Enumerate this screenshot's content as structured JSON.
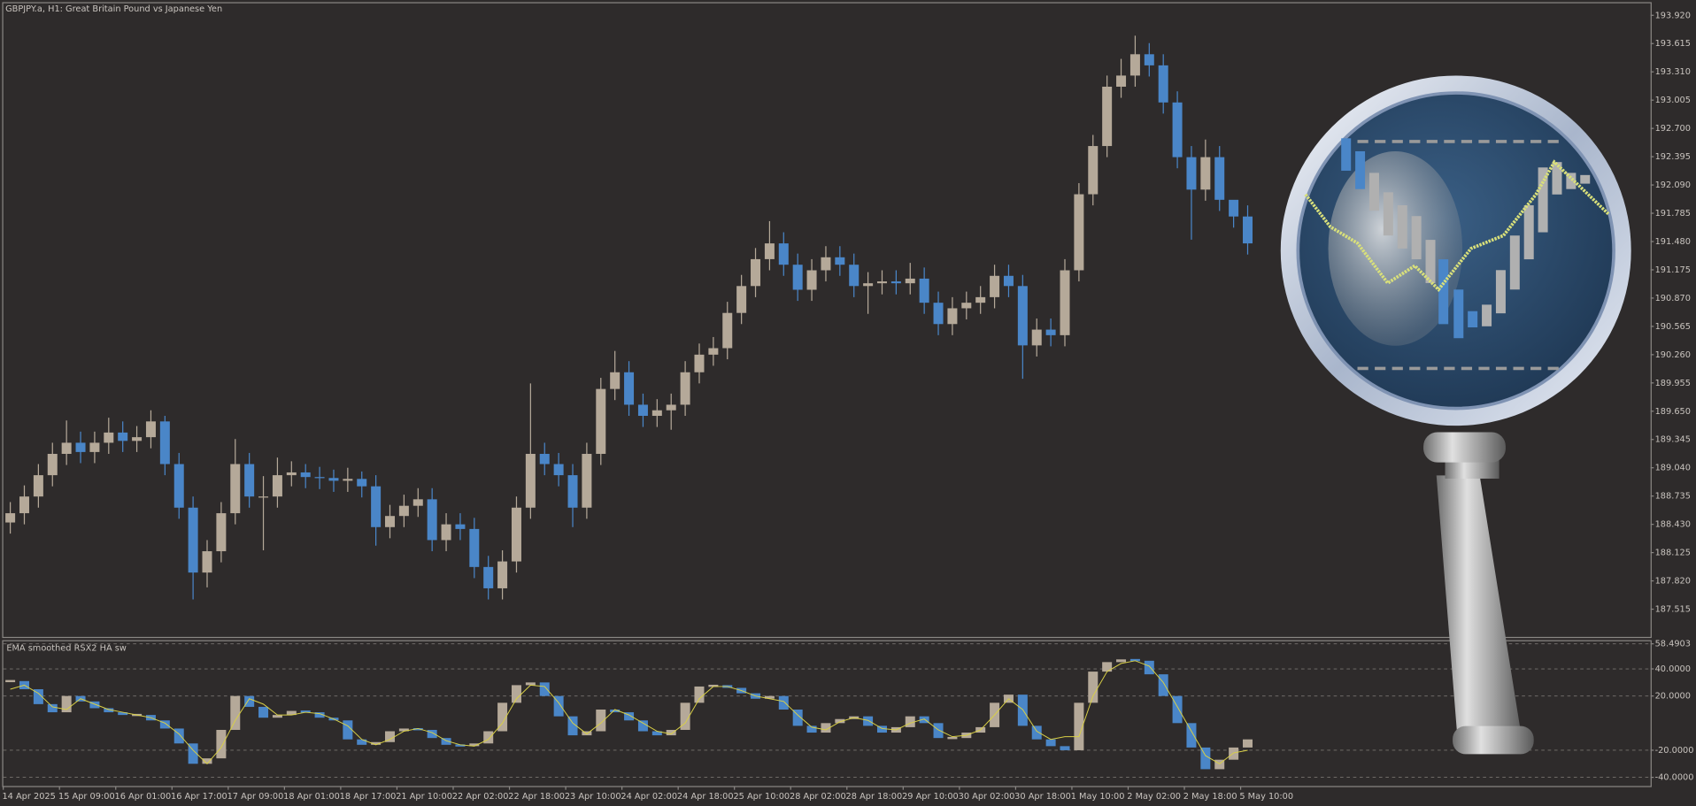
{
  "chart_data": [
    {
      "type": "candlestick",
      "title": "GBPJPY.a, H1:  Great Britain Pound vs Japanese Yen",
      "up_color": "#b5a999",
      "down_color": "#4a86c8",
      "ylim": [
        187.21,
        194.05
      ],
      "yticks": [
        {
          "value": 193.92,
          "label": "193.920"
        },
        193.615,
        {
          "value": 193.31,
          "label": "193.310"
        },
        193.005,
        {
          "value": 192.7,
          "label": "192.700"
        },
        192.395,
        {
          "value": 192.09,
          "label": "192.090"
        },
        191.785,
        {
          "value": 191.48,
          "label": "191.480"
        },
        191.175,
        {
          "value": 190.87,
          "label": "190.870"
        },
        190.565,
        {
          "value": 190.26,
          "label": "190.260"
        },
        189.955,
        {
          "value": 189.65,
          "label": "189.650"
        },
        189.345,
        {
          "value": 189.04,
          "label": "189.040"
        },
        188.735,
        {
          "value": 188.43,
          "label": "188.430"
        },
        188.125,
        {
          "value": 187.82,
          "label": "187.820"
        },
        187.515
      ],
      "open": [
        188.45,
        188.55,
        188.73,
        188.96,
        189.19,
        189.31,
        189.21,
        189.31,
        189.42,
        189.33,
        189.37,
        189.54,
        189.08,
        188.61,
        187.91,
        188.14,
        188.55,
        189.08,
        188.73,
        188.73,
        188.96,
        188.99,
        188.94,
        188.93,
        188.9,
        188.92,
        188.84,
        188.4,
        188.52,
        188.63,
        188.7,
        188.26,
        188.43,
        188.38,
        187.97,
        187.74,
        188.03,
        188.61,
        189.19,
        189.08,
        188.96,
        188.61,
        189.19,
        189.89,
        190.07,
        189.72,
        189.6,
        189.66,
        189.72,
        190.07,
        190.26,
        190.33,
        190.71,
        191.0,
        191.29,
        191.46,
        191.23,
        190.96,
        191.17,
        191.31,
        191.23,
        191.0,
        191.03,
        191.05,
        191.03,
        191.08,
        190.82,
        190.59,
        190.76,
        190.82,
        190.88,
        191.11,
        191.0,
        190.36,
        190.53,
        190.47,
        191.17,
        191.99,
        192.51,
        193.15,
        193.27,
        193.5,
        193.38,
        192.98,
        192.39,
        192.04,
        192.39,
        191.93,
        191.75
      ],
      "high": [
        188.67,
        188.85,
        189.08,
        189.31,
        189.55,
        189.43,
        189.43,
        189.58,
        189.54,
        189.49,
        189.66,
        189.6,
        189.2,
        188.73,
        188.26,
        188.67,
        189.35,
        189.2,
        188.95,
        189.15,
        189.11,
        189.08,
        189.05,
        189.02,
        189.04,
        189.0,
        188.96,
        188.64,
        188.75,
        188.82,
        188.82,
        188.55,
        188.55,
        188.5,
        188.09,
        188.15,
        188.73,
        189.95,
        189.31,
        189.2,
        189.08,
        189.31,
        190.01,
        190.3,
        190.19,
        189.84,
        189.78,
        189.84,
        190.19,
        190.38,
        190.45,
        190.83,
        191.12,
        191.41,
        191.7,
        191.58,
        191.35,
        191.29,
        191.43,
        191.43,
        191.35,
        191.15,
        191.17,
        191.17,
        191.25,
        191.2,
        190.94,
        190.88,
        190.94,
        191.0,
        191.23,
        191.23,
        191.12,
        190.65,
        190.65,
        191.29,
        192.11,
        192.63,
        193.27,
        193.45,
        193.7,
        193.62,
        193.5,
        193.1,
        192.51,
        192.58,
        192.51,
        191.87,
        191.87
      ],
      "low": [
        188.33,
        188.43,
        188.61,
        188.84,
        189.07,
        189.09,
        189.09,
        189.19,
        189.21,
        189.21,
        189.25,
        188.96,
        188.49,
        187.62,
        187.75,
        188.02,
        188.43,
        188.61,
        188.15,
        188.61,
        188.84,
        188.82,
        188.81,
        188.78,
        188.78,
        188.72,
        188.2,
        188.28,
        188.4,
        188.51,
        188.14,
        188.14,
        188.26,
        187.85,
        187.62,
        187.62,
        187.91,
        188.49,
        188.96,
        188.84,
        188.4,
        188.49,
        189.07,
        189.77,
        189.6,
        189.48,
        189.48,
        189.45,
        189.6,
        189.95,
        190.14,
        190.21,
        190.59,
        190.88,
        191.17,
        191.11,
        190.84,
        190.84,
        191.05,
        191.11,
        190.88,
        190.7,
        190.91,
        190.91,
        190.91,
        190.7,
        190.47,
        190.47,
        190.64,
        190.7,
        190.76,
        190.88,
        190.0,
        190.24,
        190.35,
        190.35,
        191.05,
        191.87,
        192.39,
        193.03,
        193.15,
        193.26,
        192.86,
        192.27,
        191.5,
        191.92,
        191.81,
        191.63,
        191.34
      ],
      "close": [
        188.55,
        188.73,
        188.96,
        189.19,
        189.31,
        189.21,
        189.31,
        189.42,
        189.33,
        189.37,
        189.54,
        189.08,
        188.61,
        187.91,
        188.14,
        188.55,
        189.08,
        188.73,
        188.73,
        188.96,
        188.99,
        188.94,
        188.93,
        188.9,
        188.92,
        188.84,
        188.4,
        188.52,
        188.63,
        188.7,
        188.26,
        188.43,
        188.38,
        187.97,
        187.74,
        188.03,
        188.61,
        189.19,
        189.08,
        188.96,
        188.61,
        189.19,
        189.89,
        190.07,
        189.72,
        189.6,
        189.66,
        189.72,
        190.07,
        190.26,
        190.33,
        190.71,
        191.0,
        191.29,
        191.46,
        191.23,
        190.96,
        191.17,
        191.31,
        191.23,
        191.0,
        191.03,
        191.05,
        191.03,
        191.08,
        190.82,
        190.59,
        190.76,
        190.82,
        190.88,
        191.11,
        191.0,
        190.36,
        190.53,
        190.47,
        191.17,
        191.99,
        192.51,
        193.15,
        193.27,
        193.5,
        193.38,
        192.98,
        192.39,
        192.04,
        192.39,
        191.93,
        191.75,
        191.46
      ]
    },
    {
      "type": "oscillator",
      "title": "EMA smoothed RSX2 HA sw",
      "ylim": [
        -46,
        60
      ],
      "yticks": [
        58.4903,
        {
          "value": 40,
          "label": "40.0000"
        },
        {
          "value": 20,
          "label": "20.0000"
        },
        {
          "value": -20,
          "label": "-20.0000"
        },
        {
          "value": -40,
          "label": "-40.0000"
        }
      ],
      "grid": true,
      "categories": [
        "14 Apr 2025",
        null,
        null,
        null,
        "15 Apr 09:00",
        null,
        null,
        null,
        "16 Apr 01:00",
        null,
        null,
        null,
        "16 Apr 17:00",
        null,
        null,
        null,
        "17 Apr 09:00",
        null,
        null,
        null,
        "18 Apr 01:00",
        null,
        null,
        null,
        "18 Apr 17:00",
        null,
        null,
        null,
        "21 Apr 10:00",
        null,
        null,
        null,
        "22 Apr 02:00",
        null,
        null,
        null,
        "22 Apr 18:00",
        null,
        null,
        null,
        "23 Apr 10:00",
        null,
        null,
        null,
        "24 Apr 02:00",
        null,
        null,
        null,
        "24 Apr 18:00",
        null,
        null,
        null,
        "25 Apr 10:00",
        null,
        null,
        null,
        "28 Apr 02:00",
        null,
        null,
        null,
        "28 Apr 18:00",
        null,
        null,
        null,
        "29 Apr 10:00",
        null,
        null,
        null,
        "30 Apr 02:00",
        null,
        null,
        null,
        "30 Apr 18:00",
        null,
        null,
        null,
        "1 May 10:00",
        null,
        null,
        null,
        "2 May 02:00",
        null,
        null,
        null,
        "2 May 18:00",
        null,
        null,
        null,
        "5 May 10:00"
      ],
      "series": [
        {
          "up_color": "#b5a999",
          "down_color": "#4a86c8",
          "values": [
            31,
            25,
            14,
            8,
            20,
            16,
            11,
            8,
            6,
            6,
            2,
            -4,
            -15,
            -30,
            -26,
            -5,
            20,
            12,
            4,
            6,
            9,
            8,
            4,
            2,
            -12,
            -16,
            -14,
            -6,
            -4,
            -5,
            -11,
            -16,
            -17,
            -15,
            -6,
            15,
            28,
            30,
            20,
            5,
            -9,
            -6,
            10,
            8,
            2,
            -6,
            -9,
            -5,
            15,
            27,
            28,
            26,
            22,
            18,
            20,
            10,
            -2,
            -7,
            0,
            3,
            5,
            -2,
            -7,
            -3,
            5,
            0,
            -11,
            -11,
            -7,
            -3,
            15,
            21,
            -2,
            -12,
            -17,
            -20,
            15,
            38,
            45,
            47,
            46,
            36,
            20,
            0,
            -18,
            -34,
            -27,
            -18,
            -12
          ]
        },
        {
          "color": "#d9d046",
          "values": [
            25,
            28,
            22,
            12,
            10,
            18,
            14,
            10,
            8,
            6,
            4,
            0,
            -8,
            -20,
            -30,
            -18,
            2,
            18,
            14,
            6,
            6,
            8,
            7,
            3,
            -2,
            -12,
            -16,
            -12,
            -6,
            -4,
            -7,
            -13,
            -16,
            -17,
            -12,
            0,
            18,
            28,
            27,
            15,
            0,
            -8,
            0,
            10,
            6,
            0,
            -6,
            -8,
            0,
            18,
            27,
            27,
            24,
            20,
            18,
            16,
            6,
            -3,
            -5,
            1,
            4,
            2,
            -4,
            -5,
            0,
            3,
            -5,
            -10,
            -9,
            -5,
            6,
            18,
            10,
            -6,
            -12,
            -10,
            -10,
            20,
            38,
            44,
            46,
            42,
            30,
            12,
            -6,
            -24,
            -30,
            -22,
            -20
          ]
        }
      ]
    }
  ]
}
